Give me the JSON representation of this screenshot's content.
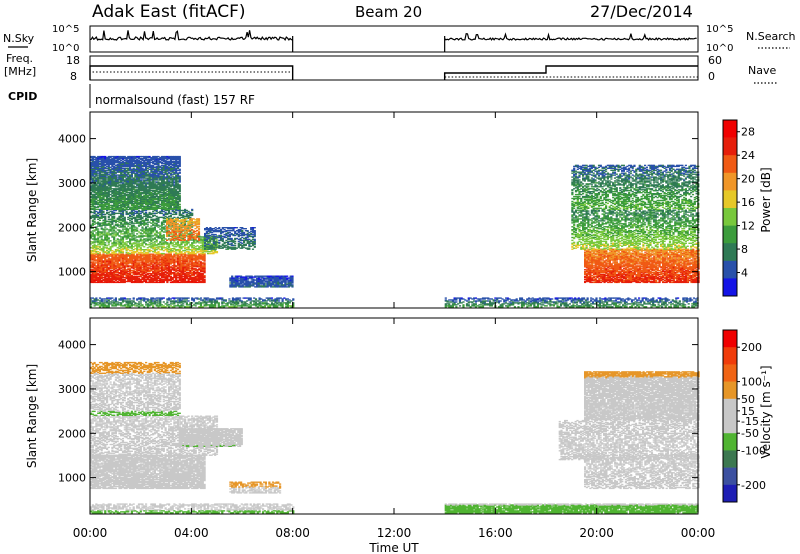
{
  "header": {
    "station": "Adak East (fitACF)",
    "beam": "Beam 20",
    "date": "27/Dec/2014"
  },
  "top_panels": {
    "nsky_label": "N.Sky",
    "nsearch_label": "N.Search",
    "noise_ticks": [
      "10^5",
      "10^0"
    ],
    "freq_label_line1": "Freq.",
    "freq_label_line2": "[MHz]",
    "freq_ticks": [
      "18",
      "8"
    ],
    "nave_label": "Nave",
    "nave_ticks": [
      "60",
      "0"
    ],
    "cpid_label": "CPID",
    "cpid_text": "normalsound (fast) 157 RF"
  },
  "colors": {
    "power": [
      "#1414e6",
      "#2850aa",
      "#2f7a55",
      "#3c9c3c",
      "#78c83c",
      "#e6c828",
      "#f09628",
      "#f05a14",
      "#e61e0a",
      "#f00000"
    ],
    "velocity": [
      "#1e1eb4",
      "#3c50a0",
      "#3c7850",
      "#50b432",
      "#c8c8c8",
      "#c8c8c8",
      "#e69628",
      "#f06414",
      "#f03c0a",
      "#f00000"
    ]
  },
  "chart_data": [
    {
      "type": "heatmap",
      "name": "power",
      "ylabel": "Slant Range [km]",
      "xlabel": "Time UT",
      "x_ticks": [
        "00:00",
        "04:00",
        "08:00",
        "12:00",
        "16:00",
        "20:00",
        "00:00"
      ],
      "xlim_hours": [
        0,
        24
      ],
      "y_ticks": [
        1000,
        2000,
        3000,
        4000
      ],
      "ylim": [
        180,
        4600
      ],
      "data_gap_hours": [
        8,
        14
      ],
      "colorbar": {
        "label": "Power [dB]",
        "ticks": [
          4,
          8,
          12,
          16,
          20,
          24,
          28
        ],
        "range": [
          0,
          30
        ]
      },
      "regions": [
        {
          "t0": 0.0,
          "t1": 4.5,
          "r0": 750,
          "r1": 1400,
          "v0": 26,
          "v1": 22
        },
        {
          "t0": 0.0,
          "t1": 5.0,
          "r0": 1400,
          "r1": 1800,
          "v0": 16,
          "v1": 10
        },
        {
          "t0": 0.0,
          "t1": 4.0,
          "r0": 1800,
          "r1": 2400,
          "v0": 12,
          "v1": 6
        },
        {
          "t0": 0.0,
          "t1": 3.5,
          "r0": 2400,
          "r1": 3600,
          "v0": 10,
          "v1": 4
        },
        {
          "t0": 3.0,
          "t1": 4.3,
          "r0": 1700,
          "r1": 2200,
          "v0": 22,
          "v1": 18
        },
        {
          "t0": 4.5,
          "t1": 6.5,
          "r0": 1500,
          "r1": 2000,
          "v0": 8,
          "v1": 4
        },
        {
          "t0": 5.5,
          "t1": 8.0,
          "r0": 650,
          "r1": 900,
          "v0": 6,
          "v1": 3
        },
        {
          "t0": 0.0,
          "t1": 8.0,
          "r0": 200,
          "r1": 400,
          "v0": 12,
          "v1": 4
        },
        {
          "t0": 14.0,
          "t1": 24.0,
          "r0": 200,
          "r1": 420,
          "v0": 10,
          "v1": 3
        },
        {
          "t0": 19.5,
          "t1": 24.0,
          "r0": 750,
          "r1": 1500,
          "v0": 25,
          "v1": 20
        },
        {
          "t0": 19.0,
          "t1": 24.0,
          "r0": 1500,
          "r1": 2400,
          "v0": 15,
          "v1": 8
        },
        {
          "t0": 19.0,
          "t1": 24.0,
          "r0": 2400,
          "r1": 3400,
          "v0": 12,
          "v1": 5
        }
      ]
    },
    {
      "type": "heatmap",
      "name": "velocity",
      "ylabel": "Slant Range [km]",
      "xlabel": "Time UT",
      "x_ticks": [
        "00:00",
        "04:00",
        "08:00",
        "12:00",
        "16:00",
        "20:00",
        "00:00"
      ],
      "xlim_hours": [
        0,
        24
      ],
      "y_ticks": [
        1000,
        2000,
        3000,
        4000
      ],
      "ylim": [
        180,
        4600
      ],
      "data_gap_hours": [
        8,
        14
      ],
      "colorbar": {
        "label": "Velocity [m s⁻¹]",
        "ticks": [
          200,
          100,
          50,
          15,
          -15,
          -50,
          -100,
          -200
        ],
        "range": [
          -250,
          250
        ]
      },
      "regions": [
        {
          "t0": 0.0,
          "t1": 4.5,
          "r0": 750,
          "r1": 1500,
          "v0": 0,
          "v1": 5
        },
        {
          "t0": 0.0,
          "t1": 5.0,
          "r0": 1500,
          "r1": 2400,
          "v0": -40,
          "v1": 30
        },
        {
          "t0": 0.0,
          "t1": 3.5,
          "r0": 2400,
          "r1": 3600,
          "v0": -60,
          "v1": 80
        },
        {
          "t0": 3.5,
          "t1": 6.0,
          "r0": 1700,
          "r1": 2100,
          "v0": -50,
          "v1": -30
        },
        {
          "t0": 5.5,
          "t1": 7.5,
          "r0": 650,
          "r1": 900,
          "v0": 40,
          "v1": 60
        },
        {
          "t0": 0.0,
          "t1": 8.0,
          "r0": 200,
          "r1": 400,
          "v0": -80,
          "v1": 20
        },
        {
          "t0": 14.0,
          "t1": 24.0,
          "r0": 200,
          "r1": 420,
          "v0": -90,
          "v1": -40
        },
        {
          "t0": 19.5,
          "t1": 24.0,
          "r0": 750,
          "r1": 1500,
          "v0": 0,
          "v1": 0
        },
        {
          "t0": 18.5,
          "t1": 24.0,
          "r0": 1400,
          "r1": 2300,
          "v0": 40,
          "v1": 10
        },
        {
          "t0": 19.5,
          "t1": 24.0,
          "r0": 2300,
          "r1": 3400,
          "v0": -20,
          "v1": 60
        }
      ]
    }
  ]
}
